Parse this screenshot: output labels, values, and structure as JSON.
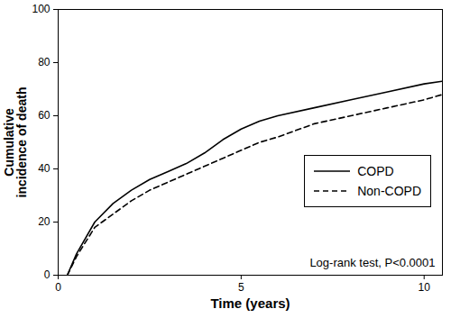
{
  "chart_data": {
    "type": "line",
    "x_label": "Time (years)",
    "y_label": "Cumulative incidence of death",
    "annotation": "Log-rank test, P<0.0001",
    "x": [
      0.25,
      0.5,
      1,
      1.5,
      2,
      2.5,
      3,
      3.5,
      4,
      4.5,
      5,
      5.5,
      6,
      7,
      8,
      9,
      10,
      10.5
    ],
    "series": [
      {
        "name": "COPD",
        "color": "#000000",
        "line_style": "solid",
        "values": [
          0,
          8,
          20,
          27,
          32,
          36,
          39,
          42,
          46,
          51,
          55,
          58,
          60,
          63,
          66,
          69,
          72,
          73
        ]
      },
      {
        "name": "Non-COPD",
        "color": "#000000",
        "line_style": "dashed",
        "values": [
          0,
          7,
          18,
          23,
          28,
          32,
          35,
          38,
          41,
          44,
          47,
          50,
          52,
          57,
          60,
          63,
          66,
          68
        ]
      }
    ],
    "xlim": [
      0,
      10.5
    ],
    "xticks": [
      0,
      5,
      10
    ],
    "ylim": [
      0,
      100
    ],
    "yticks": [
      0,
      20,
      40,
      60,
      80,
      100
    ],
    "legend": "right",
    "grid": false
  }
}
